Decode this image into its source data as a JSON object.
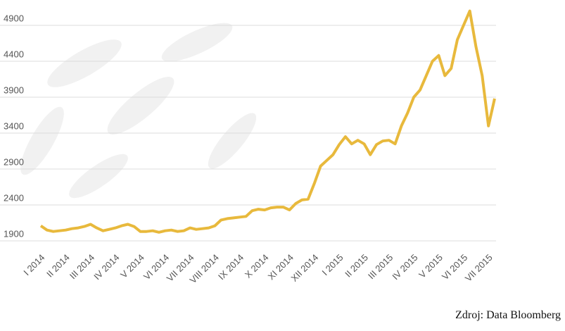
{
  "chart_data": {
    "type": "line",
    "source": "Zdroj: Data Bloomberg",
    "categories": [
      "I 2014",
      null,
      null,
      null,
      "II 2014",
      null,
      null,
      null,
      "III 2014",
      null,
      null,
      null,
      "IV 2014",
      null,
      null,
      null,
      "V 2014",
      null,
      null,
      null,
      "VI 2014",
      null,
      null,
      null,
      "VII 2014",
      null,
      null,
      null,
      "VIII 2014",
      null,
      null,
      null,
      "IX 2014",
      null,
      null,
      null,
      "X 2014",
      null,
      null,
      null,
      "XI 2014",
      null,
      null,
      null,
      "XII 2014",
      null,
      null,
      null,
      "I 2015",
      null,
      null,
      null,
      "II 2015",
      null,
      null,
      null,
      "III 2015",
      null,
      null,
      null,
      "IV 2015",
      null,
      null,
      null,
      "V 2015",
      null,
      null,
      null,
      "VI 2015",
      null,
      null,
      null,
      "VII 2015",
      null
    ],
    "values": [
      2110,
      2050,
      2030,
      2040,
      2050,
      2070,
      2080,
      2100,
      2130,
      2080,
      2040,
      2060,
      2080,
      2110,
      2130,
      2100,
      2030,
      2030,
      2040,
      2020,
      2040,
      2050,
      2030,
      2040,
      2080,
      2060,
      2070,
      2080,
      2110,
      2190,
      2210,
      2220,
      2230,
      2240,
      2320,
      2340,
      2330,
      2360,
      2370,
      2370,
      2330,
      2420,
      2470,
      2480,
      2700,
      2940,
      3020,
      3100,
      3240,
      3350,
      3250,
      3300,
      3250,
      3100,
      3240,
      3290,
      3300,
      3250,
      3500,
      3680,
      3900,
      4000,
      4200,
      4400,
      4480,
      4200,
      4300,
      4700,
      4900,
      5100,
      4600,
      4200,
      3500,
      3880
    ],
    "color": "#e8b93c",
    "ylim": [
      1900,
      4900
    ],
    "yticks": [
      1900,
      2400,
      2900,
      3400,
      3900,
      4400,
      4900
    ],
    "grid": true
  }
}
